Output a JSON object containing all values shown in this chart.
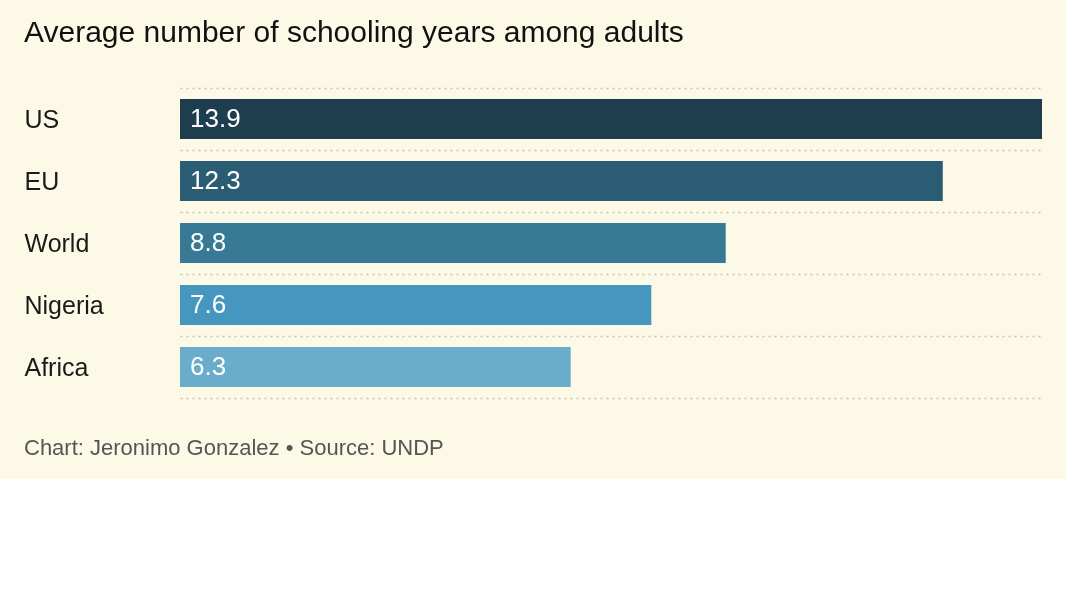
{
  "chart_data": {
    "type": "bar",
    "orientation": "horizontal",
    "title": "Average number of schooling years among adults",
    "categories": [
      "US",
      "EU",
      "World",
      "Nigeria",
      "Africa"
    ],
    "values": [
      13.9,
      12.3,
      8.8,
      7.6,
      6.3
    ],
    "colors": [
      "#1e3d4f",
      "#2a5d73",
      "#387a96",
      "#4697c0",
      "#6aadcb"
    ],
    "data_labels": true,
    "grid": "y",
    "tick_labels": "y",
    "annotations": [
      "Chart: Jeronimo Gonzalez • Source: UNDP"
    ]
  }
}
